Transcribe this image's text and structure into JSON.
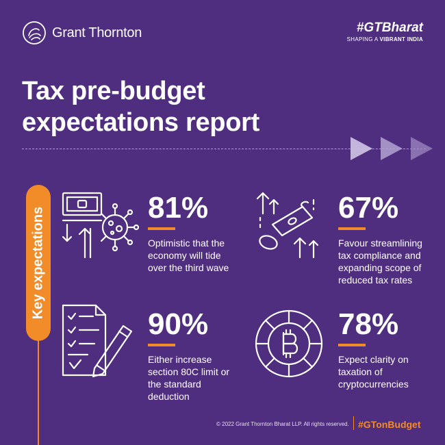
{
  "brand": {
    "name": "Grant Thornton",
    "hashtag": "#GTBharat",
    "tagline_prefix": "SHAPING A ",
    "tagline_bold": "VIBRANT INDIA"
  },
  "title": {
    "line1": "Tax pre-budget",
    "line2": "expectations report"
  },
  "side_label": "Key expectations",
  "stats": [
    {
      "value": "81%",
      "lines": [
        "Optimistic that the",
        "economy will tide",
        "over the third wave"
      ],
      "icon": "money-virus-icon"
    },
    {
      "value": "67%",
      "lines": [
        "Favour streamlining",
        "tax compliance and",
        "expanding  scope of",
        "reduced tax rates"
      ],
      "icon": "banknote-coin-arrows-icon"
    },
    {
      "value": "90%",
      "lines": [
        "Either increase",
        "section 80C limit or",
        "the standard",
        "deduction"
      ],
      "icon": "document-pen-icon"
    },
    {
      "value": "78%",
      "lines": [
        "Expect clarity on",
        "taxation of",
        "cryptocurrencies"
      ],
      "icon": "bitcoin-coin-icon"
    }
  ],
  "footer": {
    "copyright": "© 2022  Grant Thornton  Bharat  LLP.  All rights reserved.",
    "hashtag": "#GTonBudget"
  },
  "colors": {
    "background": "#4f2d7f",
    "accent": "#f28c28",
    "text": "#ffffff"
  }
}
